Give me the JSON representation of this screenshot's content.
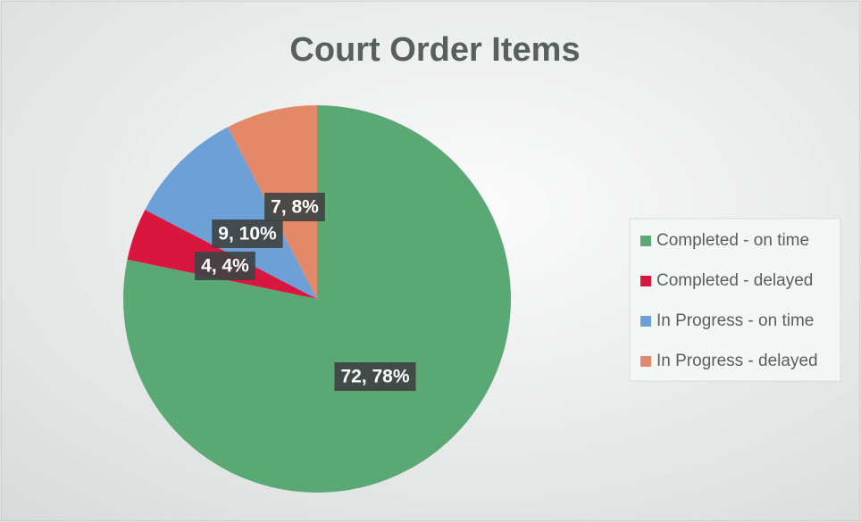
{
  "chart_data": {
    "type": "pie",
    "title": "Court Order Items",
    "categories": [
      "Completed - on time",
      "Completed - delayed",
      "In Progress - on time",
      "In Progress - delayed"
    ],
    "values": [
      72,
      4,
      9,
      7
    ],
    "value_labels": [
      "72, 78%",
      "4, 4%",
      "9, 10%",
      "7, 8%"
    ],
    "colors": [
      "#5aa874",
      "#d8163e",
      "#6ea0d8",
      "#e3896a"
    ],
    "legend": "right"
  }
}
